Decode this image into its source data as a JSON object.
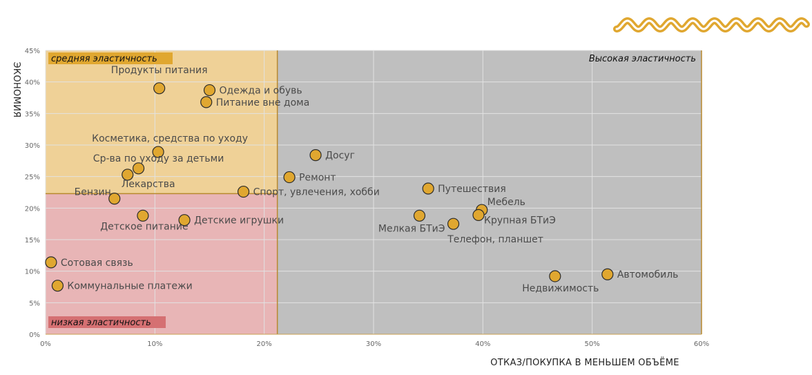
{
  "decoration": {
    "icon": "wave-ornament-icon",
    "color": "#e0a730"
  },
  "chart_data": {
    "type": "scatter",
    "title": "",
    "xlabel": "ОТКАЗ/ПОКУПКА В МЕНЬШЕМ ОБЪЁМЕ",
    "ylabel": "ЭКОНОМИЯ",
    "xlim": [
      0,
      60
    ],
    "ylim": [
      0,
      45
    ],
    "x_ticks": [
      "0%",
      "10%",
      "20%",
      "30%",
      "40%",
      "50%",
      "60%"
    ],
    "y_ticks": [
      "0%",
      "5%",
      "10%",
      "15%",
      "20%",
      "25%",
      "30%",
      "35%",
      "40%",
      "45%"
    ],
    "grid": true,
    "thresholds": {
      "x": 21.2,
      "y": 22.3
    },
    "zones": {
      "medium": {
        "label": "средняя эластичность",
        "color": "#efd197",
        "label_bg": "#e0a730"
      },
      "low": {
        "label": "низкая эластичность",
        "color": "#e8b5b6",
        "label_bg": "#d57072"
      },
      "high": {
        "label": "Высокая эластичность",
        "color": "#bfbfbf"
      }
    },
    "point_color": "#e0a730",
    "points": [
      {
        "label": "Продукты питания",
        "x": 10.4,
        "y": 39.0
      },
      {
        "label": "Одежда и обувь",
        "x": 15.0,
        "y": 38.7
      },
      {
        "label": "Питание вне дома",
        "x": 14.7,
        "y": 36.8
      },
      {
        "label": "Косметика, средства по уходу",
        "x": 10.3,
        "y": 28.9
      },
      {
        "label": "Ср-ва по уходу за детьми",
        "x": 8.5,
        "y": 26.3
      },
      {
        "label": "Лекарства",
        "x": 7.5,
        "y": 25.3
      },
      {
        "label": "Бензин",
        "x": 6.3,
        "y": 21.5
      },
      {
        "label": "Детское питание",
        "x": 8.9,
        "y": 18.8
      },
      {
        "label": "Детские игрушки",
        "x": 12.7,
        "y": 18.1
      },
      {
        "label": "Сотовая связь",
        "x": 0.5,
        "y": 11.4
      },
      {
        "label": "Коммунальные платежи",
        "x": 1.1,
        "y": 7.7
      },
      {
        "label": "Спорт, увлечения, хобби",
        "x": 18.1,
        "y": 22.6
      },
      {
        "label": "Ремонт",
        "x": 22.3,
        "y": 24.9
      },
      {
        "label": "Досуг",
        "x": 24.7,
        "y": 28.4
      },
      {
        "label": "Путешествия",
        "x": 35.0,
        "y": 23.1
      },
      {
        "label": "Мебель",
        "x": 39.9,
        "y": 19.7
      },
      {
        "label": "Крупная БТиЭ",
        "x": 39.6,
        "y": 18.9
      },
      {
        "label": "Мелкая БТиЭ",
        "x": 34.2,
        "y": 18.8
      },
      {
        "label": "Телефон, планшет",
        "x": 37.3,
        "y": 17.5
      },
      {
        "label": "Недвижимость",
        "x": 46.6,
        "y": 9.2
      },
      {
        "label": "Автомобиль",
        "x": 51.4,
        "y": 9.5
      }
    ]
  }
}
